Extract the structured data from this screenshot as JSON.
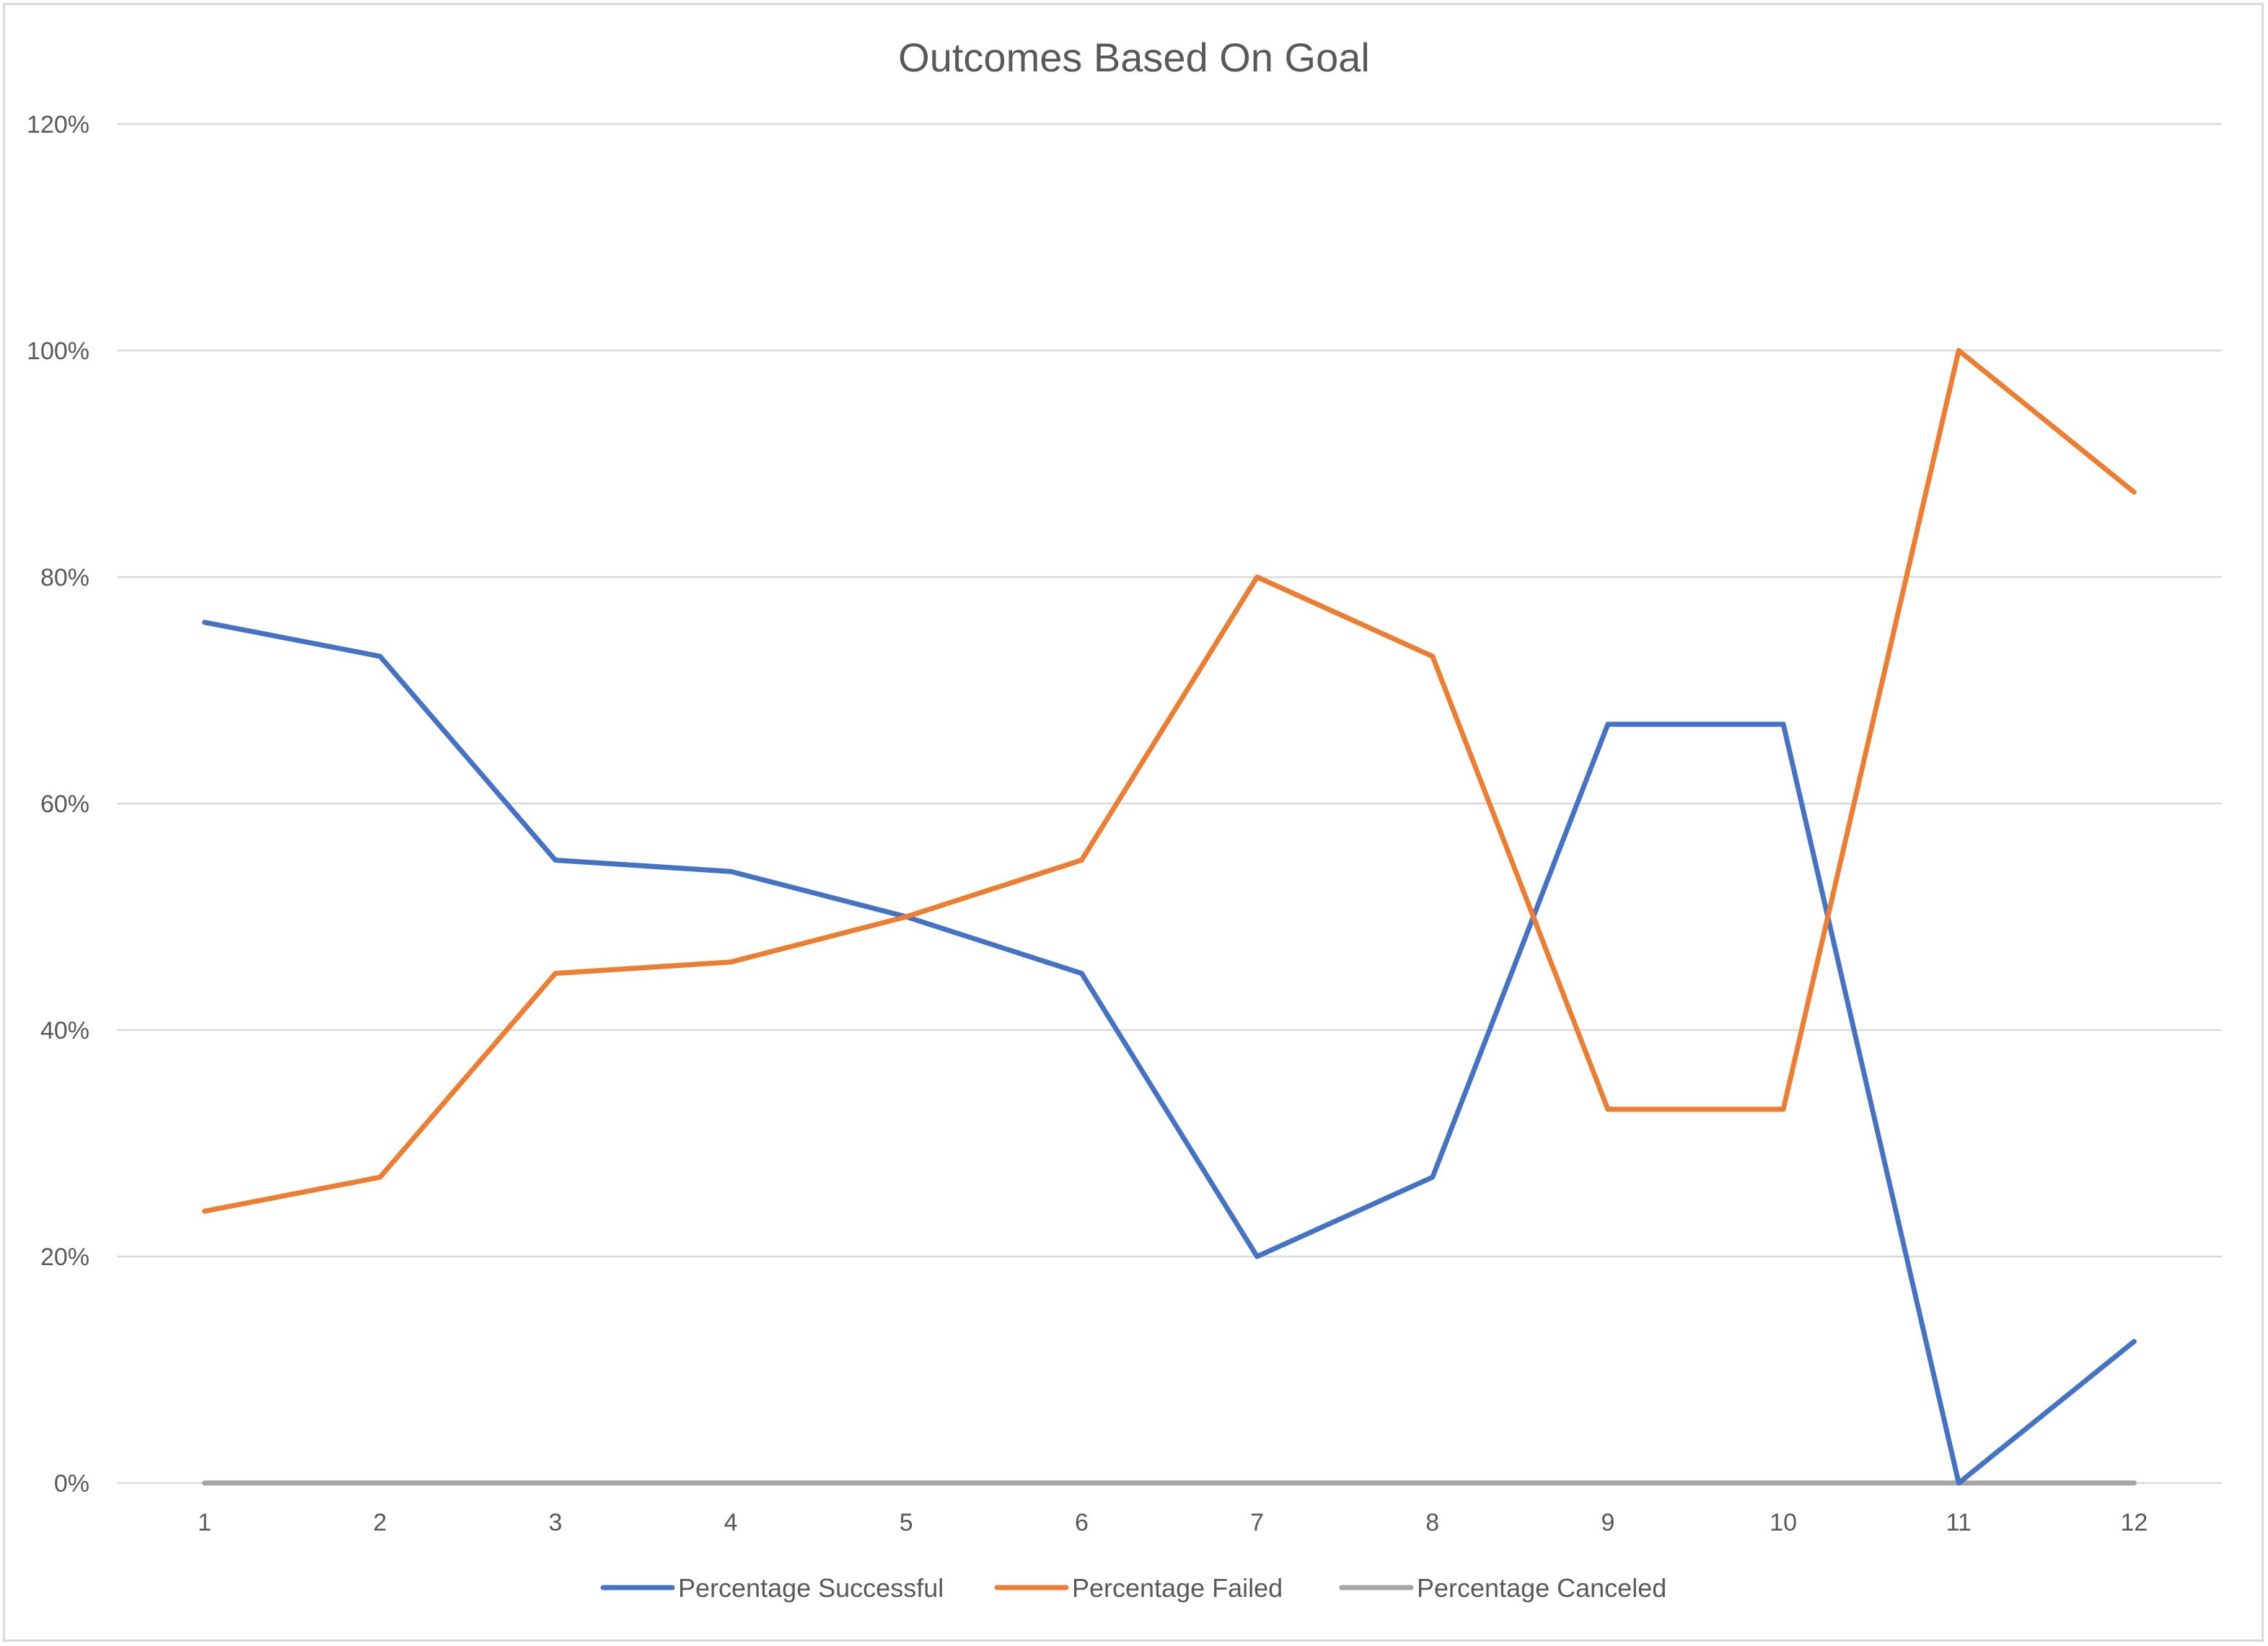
{
  "chart_data": {
    "type": "line",
    "title": "Outcomes Based On Goal",
    "xlabel": "",
    "ylabel": "",
    "categories": [
      "1",
      "2",
      "3",
      "4",
      "5",
      "6",
      "7",
      "8",
      "9",
      "10",
      "11",
      "12"
    ],
    "y_ticks": [
      "0%",
      "20%",
      "40%",
      "60%",
      "80%",
      "100%",
      "120%"
    ],
    "ylim": [
      0,
      120
    ],
    "grid": true,
    "legend_position": "bottom",
    "series": [
      {
        "name": "Percentage Successful",
        "color": "#4472c4",
        "values": [
          76,
          73,
          55,
          54,
          50,
          45,
          20,
          27,
          67,
          67,
          0,
          12.5
        ]
      },
      {
        "name": "Percentage Failed",
        "color": "#ed7d31",
        "values": [
          24,
          27,
          45,
          46,
          50,
          55,
          80,
          73,
          33,
          33,
          100,
          87.5
        ]
      },
      {
        "name": "Percentage Canceled",
        "color": "#a5a5a5",
        "values": [
          0,
          0,
          0,
          0,
          0,
          0,
          0,
          0,
          0,
          0,
          0,
          0
        ]
      }
    ]
  }
}
